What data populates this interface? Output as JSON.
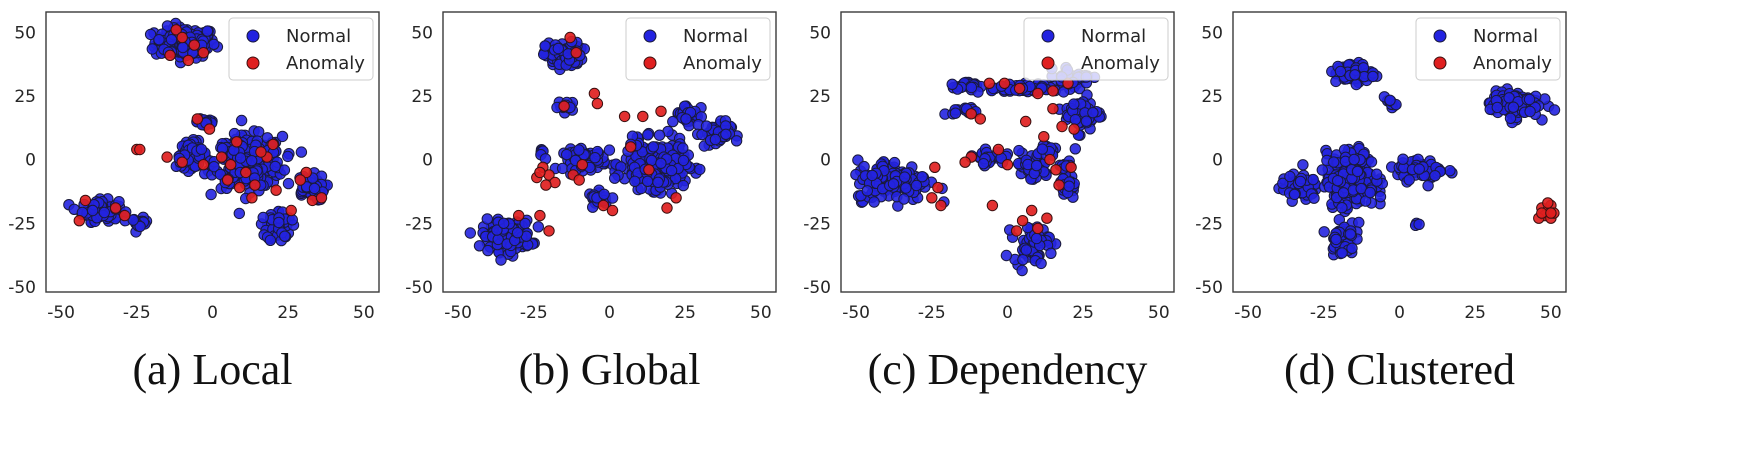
{
  "chart_data": [
    {
      "type": "scatter",
      "caption": "(a) Local",
      "xlim": [
        -55,
        55
      ],
      "ylim": [
        -52,
        58
      ],
      "xticks": [
        "-50",
        "-25",
        "0",
        "25",
        "50"
      ],
      "yticks": [
        "50",
        "25",
        "0",
        "-25",
        "-50"
      ],
      "grid": false,
      "legend_position": "top-right",
      "series": [
        {
          "name": "Normal",
          "color": "#2323e0",
          "clusters": [
            {
              "cx": -9,
              "cy": 46,
              "rx": 10,
              "ry": 6,
              "n": 170
            },
            {
              "cx": -37,
              "cy": -20,
              "rx": 6,
              "ry": 4,
              "n": 90
            },
            {
              "cx": -24,
              "cy": -25,
              "rx": 2.5,
              "ry": 2,
              "n": 20
            },
            {
              "cx": -7,
              "cy": 2,
              "rx": 5,
              "ry": 5,
              "n": 60
            },
            {
              "cx": -2,
              "cy": 15,
              "rx": 3,
              "ry": 2.5,
              "n": 25
            },
            {
              "cx": 12,
              "cy": -1,
              "rx": 11,
              "ry": 10,
              "n": 300
            },
            {
              "cx": 22,
              "cy": -26,
              "rx": 4,
              "ry": 6,
              "n": 60
            },
            {
              "cx": 32,
              "cy": -11,
              "rx": 5,
              "ry": 5,
              "n": 60
            }
          ]
        },
        {
          "name": "Anomaly",
          "color": "#e02020",
          "points": [
            [
              -12,
              51
            ],
            [
              -6,
              45
            ],
            [
              -14,
              41
            ],
            [
              -3,
              42
            ],
            [
              -8,
              39
            ],
            [
              -10,
              48
            ],
            [
              -25,
              4
            ],
            [
              -24,
              4
            ],
            [
              -15,
              1
            ],
            [
              -10,
              -1
            ],
            [
              -5,
              16
            ],
            [
              -1,
              12
            ],
            [
              -3,
              -2
            ],
            [
              3,
              1
            ],
            [
              8,
              7
            ],
            [
              11,
              -5
            ],
            [
              14,
              -10
            ],
            [
              18,
              1
            ],
            [
              9,
              -11
            ],
            [
              16,
              3
            ],
            [
              5,
              -8
            ],
            [
              21,
              -12
            ],
            [
              26,
              -20
            ],
            [
              33,
              -16
            ],
            [
              36,
              -15
            ],
            [
              31,
              -5
            ],
            [
              29,
              -8
            ],
            [
              -44,
              -24
            ],
            [
              -32,
              -19
            ],
            [
              -29,
              -22
            ],
            [
              -42,
              -16
            ],
            [
              20,
              6
            ],
            [
              13,
              -15
            ],
            [
              6,
              -2
            ]
          ]
        }
      ]
    },
    {
      "type": "scatter",
      "caption": "(b) Global",
      "xlim": [
        -55,
        55
      ],
      "ylim": [
        -52,
        58
      ],
      "xticks": [
        "-50",
        "-25",
        "0",
        "25",
        "50"
      ],
      "yticks": [
        "50",
        "25",
        "0",
        "-25",
        "-50"
      ],
      "grid": false,
      "legend_position": "top-right",
      "series": [
        {
          "name": "Normal",
          "color": "#2323e0",
          "clusters": [
            {
              "cx": -15,
              "cy": 41,
              "rx": 6,
              "ry": 5,
              "n": 90
            },
            {
              "cx": -34,
              "cy": -30,
              "rx": 8,
              "ry": 6,
              "n": 150
            },
            {
              "cx": -14,
              "cy": 21,
              "rx": 3,
              "ry": 2,
              "n": 15
            },
            {
              "cx": -22,
              "cy": 3,
              "rx": 1.5,
              "ry": 1.5,
              "n": 6
            },
            {
              "cx": -8,
              "cy": 0,
              "rx": 7,
              "ry": 4,
              "n": 70
            },
            {
              "cx": -3,
              "cy": -15,
              "rx": 4,
              "ry": 2.5,
              "n": 25
            },
            {
              "cx": 15,
              "cy": -2,
              "rx": 10,
              "ry": 9,
              "n": 300
            },
            {
              "cx": 26,
              "cy": 18,
              "rx": 4,
              "ry": 4,
              "n": 40
            },
            {
              "cx": 35,
              "cy": 10,
              "rx": 5,
              "ry": 5,
              "n": 50
            }
          ]
        },
        {
          "name": "Anomaly",
          "color": "#e02020",
          "points": [
            [
              -13,
              48
            ],
            [
              -11,
              42
            ],
            [
              -5,
              26
            ],
            [
              -4,
              22
            ],
            [
              -15,
              21
            ],
            [
              -22,
              -3
            ],
            [
              -24,
              -7
            ],
            [
              -20,
              -6
            ],
            [
              -18,
              -9
            ],
            [
              -21,
              -10
            ],
            [
              -23,
              -5
            ],
            [
              -12,
              -6
            ],
            [
              -10,
              -8
            ],
            [
              -2,
              -18
            ],
            [
              1,
              -20
            ],
            [
              5,
              17
            ],
            [
              11,
              17
            ],
            [
              17,
              19
            ],
            [
              13,
              -4
            ],
            [
              19,
              -19
            ],
            [
              22,
              -15
            ],
            [
              -23,
              -22
            ],
            [
              -20,
              -28
            ],
            [
              -30,
              -22
            ],
            [
              -9,
              -2
            ],
            [
              7,
              5
            ]
          ]
        }
      ]
    },
    {
      "type": "scatter",
      "caption": "(c) Dependency",
      "xlim": [
        -55,
        55
      ],
      "ylim": [
        -52,
        58
      ],
      "xticks": [
        "-50",
        "-25",
        "0",
        "25",
        "50"
      ],
      "yticks": [
        "50",
        "25",
        "0",
        "-25",
        "-50"
      ],
      "grid": false,
      "legend_position": "top-right",
      "series": [
        {
          "name": "Normal",
          "color": "#2323e0",
          "clusters": [
            {
              "cx": -14,
              "cy": 29,
              "rx": 4,
              "ry": 1.5,
              "n": 20
            },
            {
              "cx": 5,
              "cy": 28,
              "rx": 18,
              "ry": 2,
              "n": 60
            },
            {
              "cx": 22,
              "cy": 33,
              "rx": 6,
              "ry": 3,
              "n": 25
            },
            {
              "cx": -14,
              "cy": 19,
              "rx": 4,
              "ry": 1.5,
              "n": 15
            },
            {
              "cx": 25,
              "cy": 18,
              "rx": 6,
              "ry": 7,
              "n": 50
            },
            {
              "cx": -38,
              "cy": -8,
              "rx": 12,
              "ry": 8,
              "n": 160
            },
            {
              "cx": -6,
              "cy": 1,
              "rx": 5,
              "ry": 2.5,
              "n": 30
            },
            {
              "cx": 8,
              "cy": -3,
              "rx": 6,
              "ry": 6,
              "n": 40
            },
            {
              "cx": 8,
              "cy": -33,
              "rx": 6,
              "ry": 7,
              "n": 60
            },
            {
              "cx": 20,
              "cy": -8,
              "rx": 3,
              "ry": 9,
              "n": 30
            },
            {
              "cx": 13,
              "cy": 4,
              "rx": 3,
              "ry": 3,
              "n": 15
            }
          ]
        },
        {
          "name": "Anomaly",
          "color": "#e02020",
          "points": [
            [
              -6,
              30
            ],
            [
              -1,
              30
            ],
            [
              4,
              28
            ],
            [
              10,
              26
            ],
            [
              15,
              27
            ],
            [
              20,
              30
            ],
            [
              -12,
              18
            ],
            [
              -9,
              16
            ],
            [
              6,
              15
            ],
            [
              15,
              20
            ],
            [
              18,
              13
            ],
            [
              22,
              12
            ],
            [
              -12,
              1
            ],
            [
              -14,
              -1
            ],
            [
              -3,
              4
            ],
            [
              0,
              -2
            ],
            [
              -24,
              -3
            ],
            [
              -23,
              -11
            ],
            [
              -25,
              -15
            ],
            [
              -22,
              -18
            ],
            [
              -5,
              -18
            ],
            [
              14,
              0
            ],
            [
              16,
              -4
            ],
            [
              17,
              -10
            ],
            [
              21,
              -3
            ],
            [
              8,
              -20
            ],
            [
              5,
              -24
            ],
            [
              10,
              -27
            ],
            [
              13,
              -23
            ],
            [
              3,
              -28
            ],
            [
              12,
              9
            ]
          ]
        }
      ]
    },
    {
      "type": "scatter",
      "caption": "(d) Clustered",
      "xlim": [
        -55,
        55
      ],
      "ylim": [
        -52,
        58
      ],
      "xticks": [
        "-50",
        "-25",
        "0",
        "25",
        "50"
      ],
      "yticks": [
        "50",
        "25",
        "0",
        "-25",
        "-50"
      ],
      "grid": false,
      "legend_position": "top-right",
      "series": [
        {
          "name": "Normal",
          "color": "#2323e0",
          "clusters": [
            {
              "cx": -15,
              "cy": 34,
              "rx": 6,
              "ry": 4,
              "n": 70
            },
            {
              "cx": -3,
              "cy": 22,
              "rx": 2,
              "ry": 1.5,
              "n": 10
            },
            {
              "cx": 38,
              "cy": 22,
              "rx": 8,
              "ry": 5,
              "n": 130
            },
            {
              "cx": -33,
              "cy": -11,
              "rx": 6,
              "ry": 5,
              "n": 60
            },
            {
              "cx": -16,
              "cy": -8,
              "rx": 8,
              "ry": 11,
              "n": 250
            },
            {
              "cx": -19,
              "cy": -31,
              "rx": 4,
              "ry": 6,
              "n": 50
            },
            {
              "cx": 7,
              "cy": -4,
              "rx": 8,
              "ry": 4,
              "n": 80
            },
            {
              "cx": 6,
              "cy": -25,
              "rx": 1,
              "ry": 1,
              "n": 3
            }
          ]
        },
        {
          "name": "Anomaly",
          "color": "#e02020",
          "points": [
            [
              47,
              -19
            ],
            [
              49,
              -20
            ],
            [
              50,
              -18
            ],
            [
              48,
              -22
            ],
            [
              46,
              -23
            ],
            [
              50,
              -23
            ],
            [
              51,
              -21
            ],
            [
              49,
              -17
            ],
            [
              47,
              -21
            ],
            [
              50,
              -21
            ]
          ]
        }
      ]
    }
  ]
}
